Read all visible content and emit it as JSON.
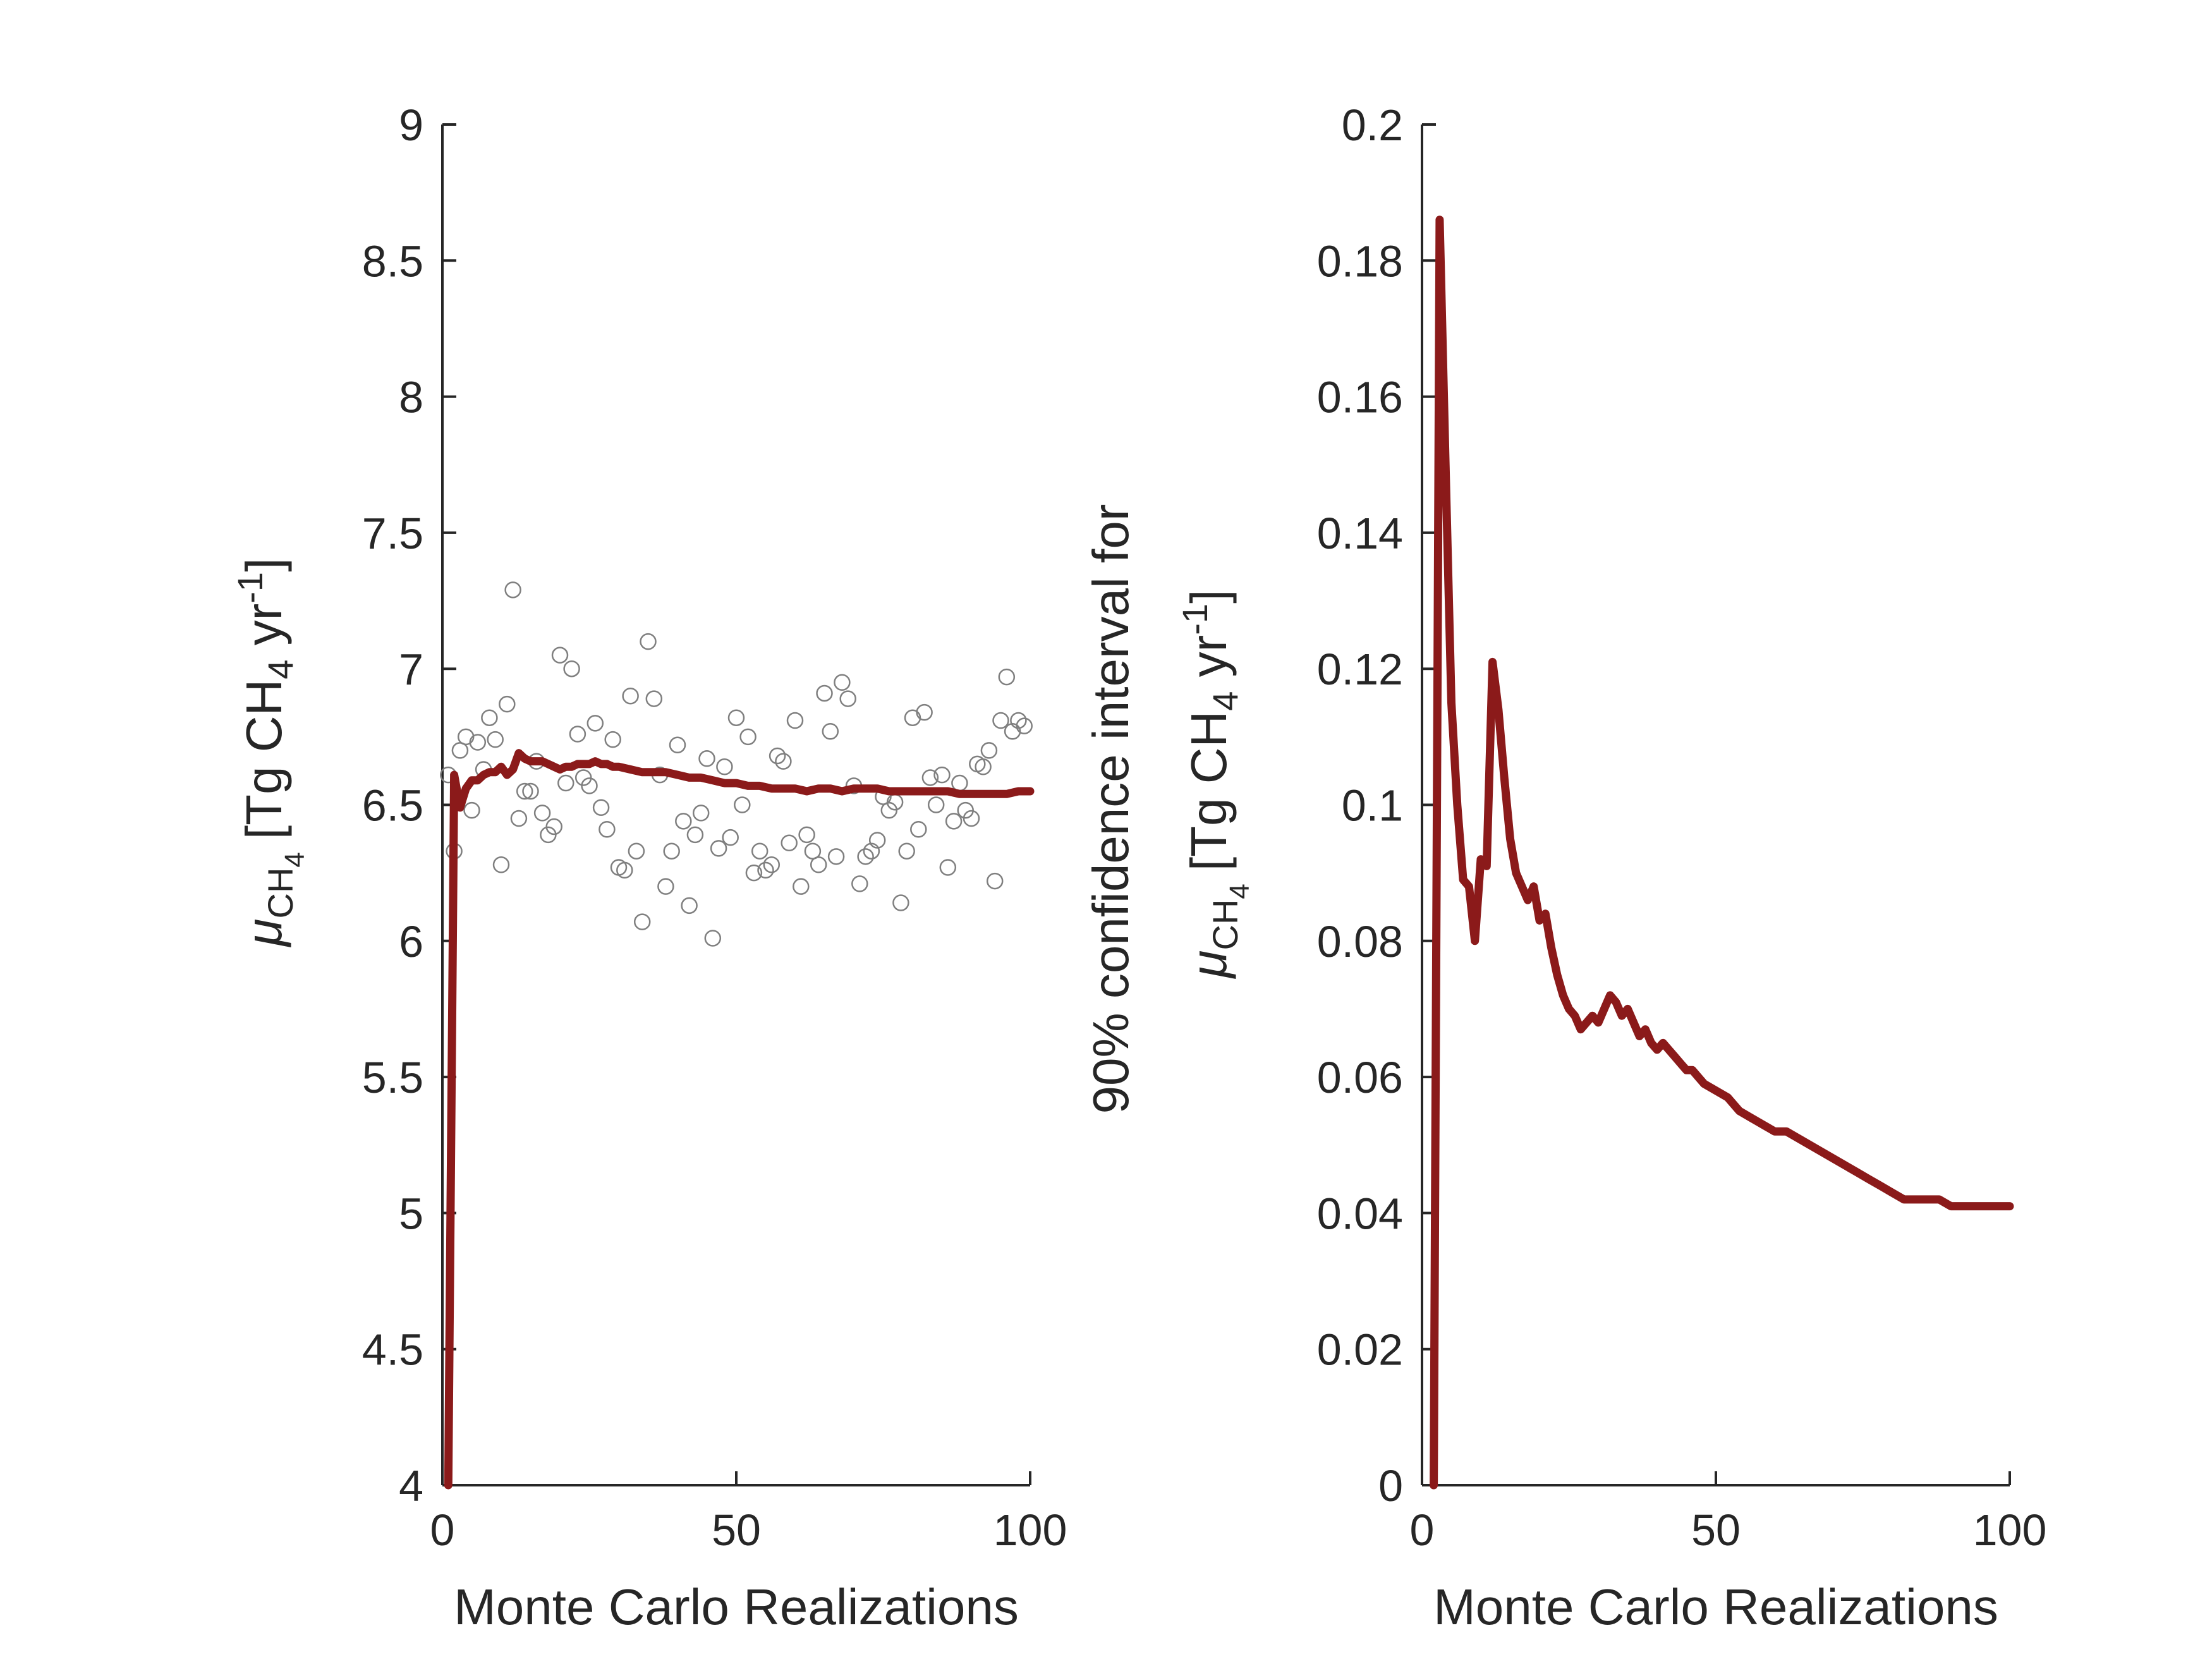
{
  "chart_data": [
    {
      "type": "scatter+line",
      "xlabel": "Monte Carlo Realizations",
      "ylabel": {
        "symbol": "μ",
        "symbol_sub": "CH",
        "symbol_sub2": "4",
        "unit_open": "[Tg CH",
        "unit_sub": "4",
        "unit_mid": " yr",
        "unit_sup": "-1",
        "unit_close": "]"
      },
      "xlim": [
        0,
        100
      ],
      "ylim": [
        4,
        9
      ],
      "xticks": [
        "0",
        "50",
        "100"
      ],
      "yticks": [
        "4",
        "4.5",
        "5",
        "5.5",
        "6",
        "6.5",
        "7",
        "7.5",
        "8",
        "8.5",
        "9"
      ],
      "line_color": "#8b1a1a",
      "marker_color": "#7f7f7f",
      "scatter": {
        "x": [
          1,
          2,
          3,
          4,
          5,
          6,
          7,
          8,
          9,
          10,
          11,
          12,
          13,
          14,
          15,
          16,
          17,
          18,
          19,
          20,
          21,
          22,
          23,
          24,
          25,
          26,
          27,
          28,
          29,
          30,
          31,
          32,
          33,
          34,
          35,
          36,
          37,
          38,
          39,
          40,
          41,
          42,
          43,
          44,
          45,
          46,
          47,
          48,
          49,
          50,
          51,
          52,
          53,
          54,
          55,
          56,
          57,
          58,
          59,
          60,
          61,
          62,
          63,
          64,
          65,
          66,
          67,
          68,
          69,
          70,
          71,
          72,
          73,
          74,
          75,
          76,
          77,
          78,
          79,
          80,
          81,
          82,
          83,
          84,
          85,
          86,
          87,
          88,
          89,
          90,
          91,
          92,
          93,
          94,
          95,
          96,
          97,
          98,
          99
        ],
        "y": [
          6.61,
          6.33,
          6.7,
          6.75,
          6.48,
          6.73,
          6.63,
          6.82,
          6.74,
          6.28,
          6.87,
          7.29,
          6.45,
          6.55,
          6.55,
          6.66,
          6.47,
          6.39,
          6.42,
          7.05,
          6.58,
          7.0,
          6.76,
          6.6,
          6.57,
          6.8,
          6.49,
          6.41,
          6.74,
          6.27,
          6.26,
          6.9,
          6.33,
          6.07,
          7.1,
          6.89,
          6.61,
          6.2,
          6.33,
          6.72,
          6.44,
          6.13,
          6.39,
          6.47,
          6.67,
          6.01,
          6.34,
          6.64,
          6.38,
          6.82,
          6.5,
          6.75,
          6.25,
          6.33,
          6.26,
          6.28,
          6.68,
          6.66,
          6.36,
          6.81,
          6.2,
          6.39,
          6.33,
          6.28,
          6.91,
          6.77,
          6.31,
          6.95,
          6.89,
          6.57,
          6.21,
          6.31,
          6.33,
          6.37,
          6.53,
          6.48,
          6.51,
          6.14,
          6.33,
          6.82,
          6.41,
          6.84,
          6.6,
          6.5,
          6.61,
          6.27,
          6.44,
          6.58,
          6.48,
          6.45,
          6.65,
          6.64,
          6.7,
          6.22,
          6.81,
          6.97,
          6.77,
          6.81,
          6.79
        ]
      },
      "series": [
        {
          "x": [
            1,
            2,
            3,
            4,
            5,
            6,
            7,
            8,
            9,
            10,
            11,
            12,
            13,
            14,
            15,
            16,
            17,
            18,
            19,
            20,
            21,
            22,
            23,
            24,
            25,
            26,
            27,
            28,
            29,
            30,
            32,
            34,
            36,
            38,
            40,
            42,
            44,
            46,
            48,
            50,
            52,
            54,
            56,
            58,
            60,
            62,
            64,
            66,
            68,
            70,
            72,
            74,
            76,
            78,
            80,
            82,
            84,
            86,
            88,
            90,
            92,
            94,
            96,
            98,
            100
          ],
          "y": [
            4.0,
            6.61,
            6.49,
            6.56,
            6.59,
            6.59,
            6.61,
            6.62,
            6.62,
            6.64,
            6.61,
            6.63,
            6.69,
            6.67,
            6.66,
            6.66,
            6.66,
            6.65,
            6.64,
            6.63,
            6.64,
            6.64,
            6.65,
            6.65,
            6.65,
            6.66,
            6.65,
            6.65,
            6.64,
            6.64,
            6.63,
            6.62,
            6.62,
            6.62,
            6.61,
            6.6,
            6.6,
            6.59,
            6.58,
            6.58,
            6.57,
            6.57,
            6.56,
            6.56,
            6.56,
            6.55,
            6.56,
            6.56,
            6.55,
            6.56,
            6.56,
            6.56,
            6.55,
            6.55,
            6.55,
            6.55,
            6.55,
            6.55,
            6.54,
            6.54,
            6.54,
            6.54,
            6.54,
            6.55,
            6.55
          ]
        }
      ]
    },
    {
      "type": "line",
      "xlabel": "Monte Carlo Realizations",
      "ylabel": {
        "line1": "90% confidence interval for",
        "symbol": "μ",
        "symbol_sub": "CH",
        "symbol_sub2": "4",
        "unit_open": "[Tg CH",
        "unit_sub": "4",
        "unit_mid": " yr",
        "unit_sup": "-1",
        "unit_close": "]"
      },
      "xlim": [
        0,
        100
      ],
      "ylim": [
        0,
        0.2
      ],
      "xticks": [
        "0",
        "50",
        "100"
      ],
      "yticks": [
        "0",
        "0.02",
        "0.04",
        "0.06",
        "0.08",
        "0.1",
        "0.12",
        "0.14",
        "0.16",
        "0.18",
        "0.2"
      ],
      "line_color": "#8b1a1a",
      "series": [
        {
          "x": [
            2,
            3,
            4,
            5,
            6,
            7,
            8,
            9,
            10,
            11,
            12,
            13,
            14,
            15,
            16,
            17,
            18,
            19,
            20,
            21,
            22,
            23,
            24,
            25,
            26,
            27,
            28,
            29,
            30,
            31,
            32,
            33,
            34,
            35,
            36,
            37,
            38,
            39,
            40,
            41,
            42,
            43,
            44,
            45,
            46,
            47,
            48,
            50,
            52,
            54,
            56,
            58,
            60,
            62,
            64,
            66,
            68,
            70,
            72,
            74,
            76,
            78,
            80,
            82,
            84,
            86,
            88,
            90,
            92,
            94,
            96,
            98,
            100
          ],
          "y": [
            0.0,
            0.186,
            0.15,
            0.115,
            0.1,
            0.089,
            0.088,
            0.08,
            0.092,
            0.091,
            0.121,
            0.114,
            0.104,
            0.095,
            0.09,
            0.088,
            0.086,
            0.088,
            0.083,
            0.084,
            0.079,
            0.075,
            0.072,
            0.07,
            0.069,
            0.067,
            0.068,
            0.069,
            0.068,
            0.07,
            0.072,
            0.071,
            0.069,
            0.07,
            0.068,
            0.066,
            0.067,
            0.065,
            0.064,
            0.065,
            0.064,
            0.063,
            0.062,
            0.061,
            0.061,
            0.06,
            0.059,
            0.058,
            0.057,
            0.055,
            0.054,
            0.053,
            0.052,
            0.052,
            0.051,
            0.05,
            0.049,
            0.048,
            0.047,
            0.046,
            0.045,
            0.044,
            0.043,
            0.042,
            0.042,
            0.042,
            0.042,
            0.041,
            0.041,
            0.041,
            0.041,
            0.041,
            0.041
          ]
        }
      ]
    }
  ]
}
